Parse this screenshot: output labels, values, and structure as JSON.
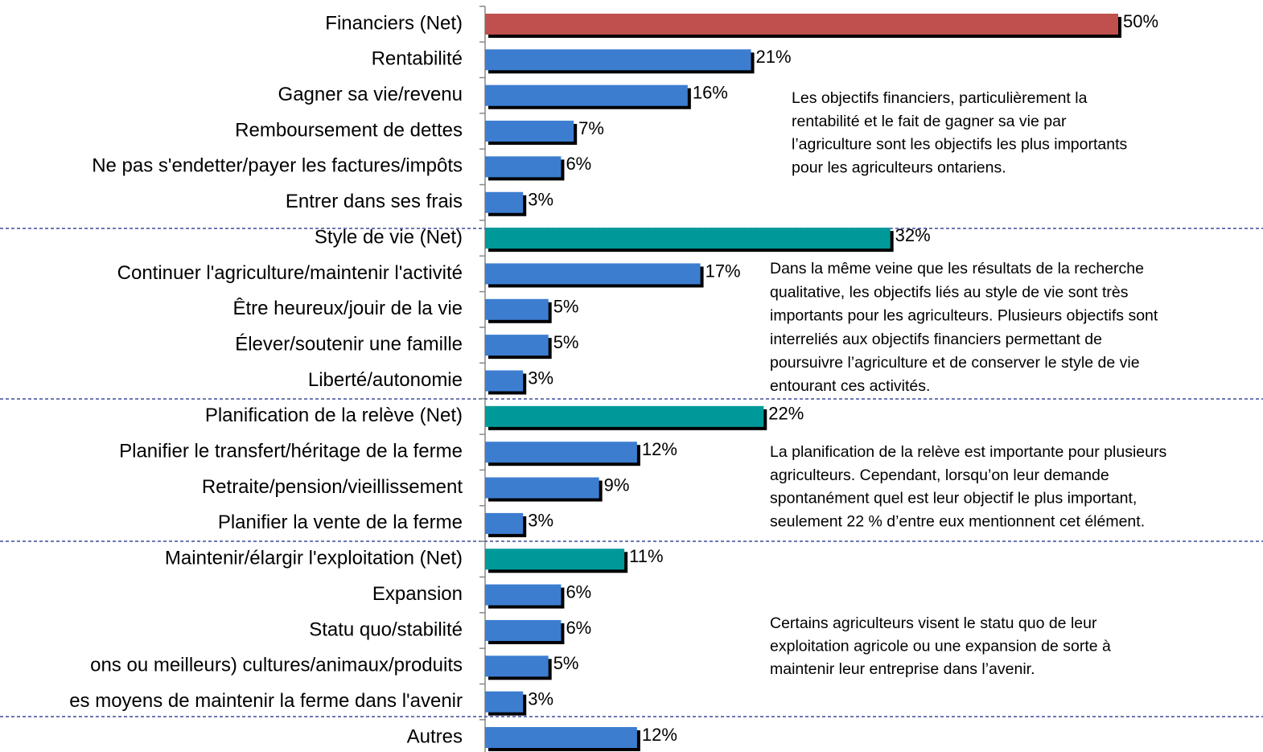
{
  "chart_data": {
    "type": "bar",
    "orientation": "horizontal",
    "categories": [
      "Financiers (Net)",
      "Rentabilité",
      "Gagner sa vie/revenu",
      "Remboursement de dettes",
      "Ne pas s'endetter/payer les factures/impôts",
      "Entrer dans ses frais",
      "Style de vie (Net)",
      "Continuer l'agriculture/maintenir l'activité",
      "Être heureux/jouir de la vie",
      "Élever/soutenir une famille",
      "Liberté/autonomie",
      "Planification de la relève (Net)",
      "Planifier le transfert/héritage de la ferme",
      "Retraite/pension/vieillissement",
      "Planifier la vente de la ferme",
      "Maintenir/élargir l'exploitation (Net)",
      "Expansion",
      "Statu quo/stabilité",
      "ons ou meilleurs) cultures/animaux/produits",
      "es moyens de maintenir la ferme dans l'avenir",
      "Autres"
    ],
    "values": [
      50,
      21,
      16,
      7,
      6,
      3,
      32,
      17,
      5,
      5,
      3,
      22,
      12,
      9,
      3,
      11,
      6,
      6,
      5,
      3,
      12
    ],
    "value_labels": [
      "50%",
      "21%",
      "16%",
      "7%",
      "6%",
      "3%",
      "32%",
      "17%",
      "5%",
      "5%",
      "3%",
      "22%",
      "12%",
      "9%",
      "3%",
      "11%",
      "6%",
      "6%",
      "5%",
      "3%",
      "12%"
    ],
    "colors": [
      "#c0504d",
      "#3c7dd0",
      "#3c7dd0",
      "#3c7dd0",
      "#3c7dd0",
      "#3c7dd0",
      "#009999",
      "#3c7dd0",
      "#3c7dd0",
      "#3c7dd0",
      "#3c7dd0",
      "#009999",
      "#3c7dd0",
      "#3c7dd0",
      "#3c7dd0",
      "#009999",
      "#3c7dd0",
      "#3c7dd0",
      "#3c7dd0",
      "#3c7dd0",
      "#3c7dd0"
    ],
    "xlim": [
      0,
      50
    ],
    "annotations": [
      [
        "Les objectifs financiers, particulièrement la",
        "rentabilité et le fait de gagner sa vie par",
        "l’agriculture sont les objectifs les plus importants",
        "pour les agriculteurs ontariens."
      ],
      [
        "Dans la même veine que les résultats de la recherche",
        "qualitative, les objectifs liés au style de vie sont très",
        "importants pour les agriculteurs. Plusieurs objectifs sont",
        "interreliés aux objectifs financiers permettant de",
        "poursuivre l’agriculture et de conserver le style de vie",
        "entourant ces activités."
      ],
      [
        "La planification de la relève est importante pour plusieurs",
        "agriculteurs. Cependant, lorsqu’on leur demande",
        "spontanément quel est leur objectif le plus important,",
        "seulement 22 % d’entre eux mentionnent cet élément."
      ],
      [
        "Certains agriculteurs visent le statu quo de leur",
        "exploitation agricole ou une expansion de sorte à",
        "maintenir leur entreprise dans l’avenir."
      ]
    ]
  }
}
